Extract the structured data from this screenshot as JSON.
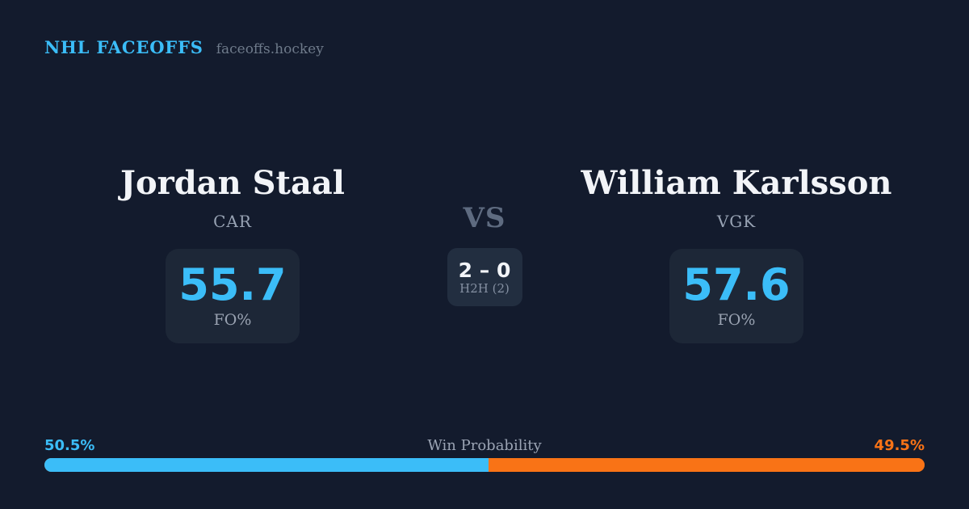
{
  "header": {
    "brand": "NHL FACEOFFS",
    "site": "faceoffs.hockey"
  },
  "players": {
    "left": {
      "name": "Jordan Staal",
      "team": "CAR",
      "stat_value": "55.7",
      "stat_label": "FO%"
    },
    "right": {
      "name": "William Karlsson",
      "team": "VGK",
      "stat_value": "57.6",
      "stat_label": "FO%"
    }
  },
  "versus": {
    "label": "VS",
    "h2h_score": "2 – 0",
    "h2h_label": "H2H (2)"
  },
  "win_probability": {
    "title": "Win Probability",
    "left_pct_label": "50.5%",
    "right_pct_label": "49.5%",
    "left_value": 50.5,
    "right_value": 49.5
  },
  "colors": {
    "background": "#131b2d",
    "card": "#1d2737",
    "h2h_card": "#222e40",
    "accent_blue": "#3bbdf8",
    "accent_orange": "#f97316",
    "text_white": "#f2f4f8",
    "text_gray": "#98a3b4",
    "vs_gray": "#5e6b80"
  }
}
